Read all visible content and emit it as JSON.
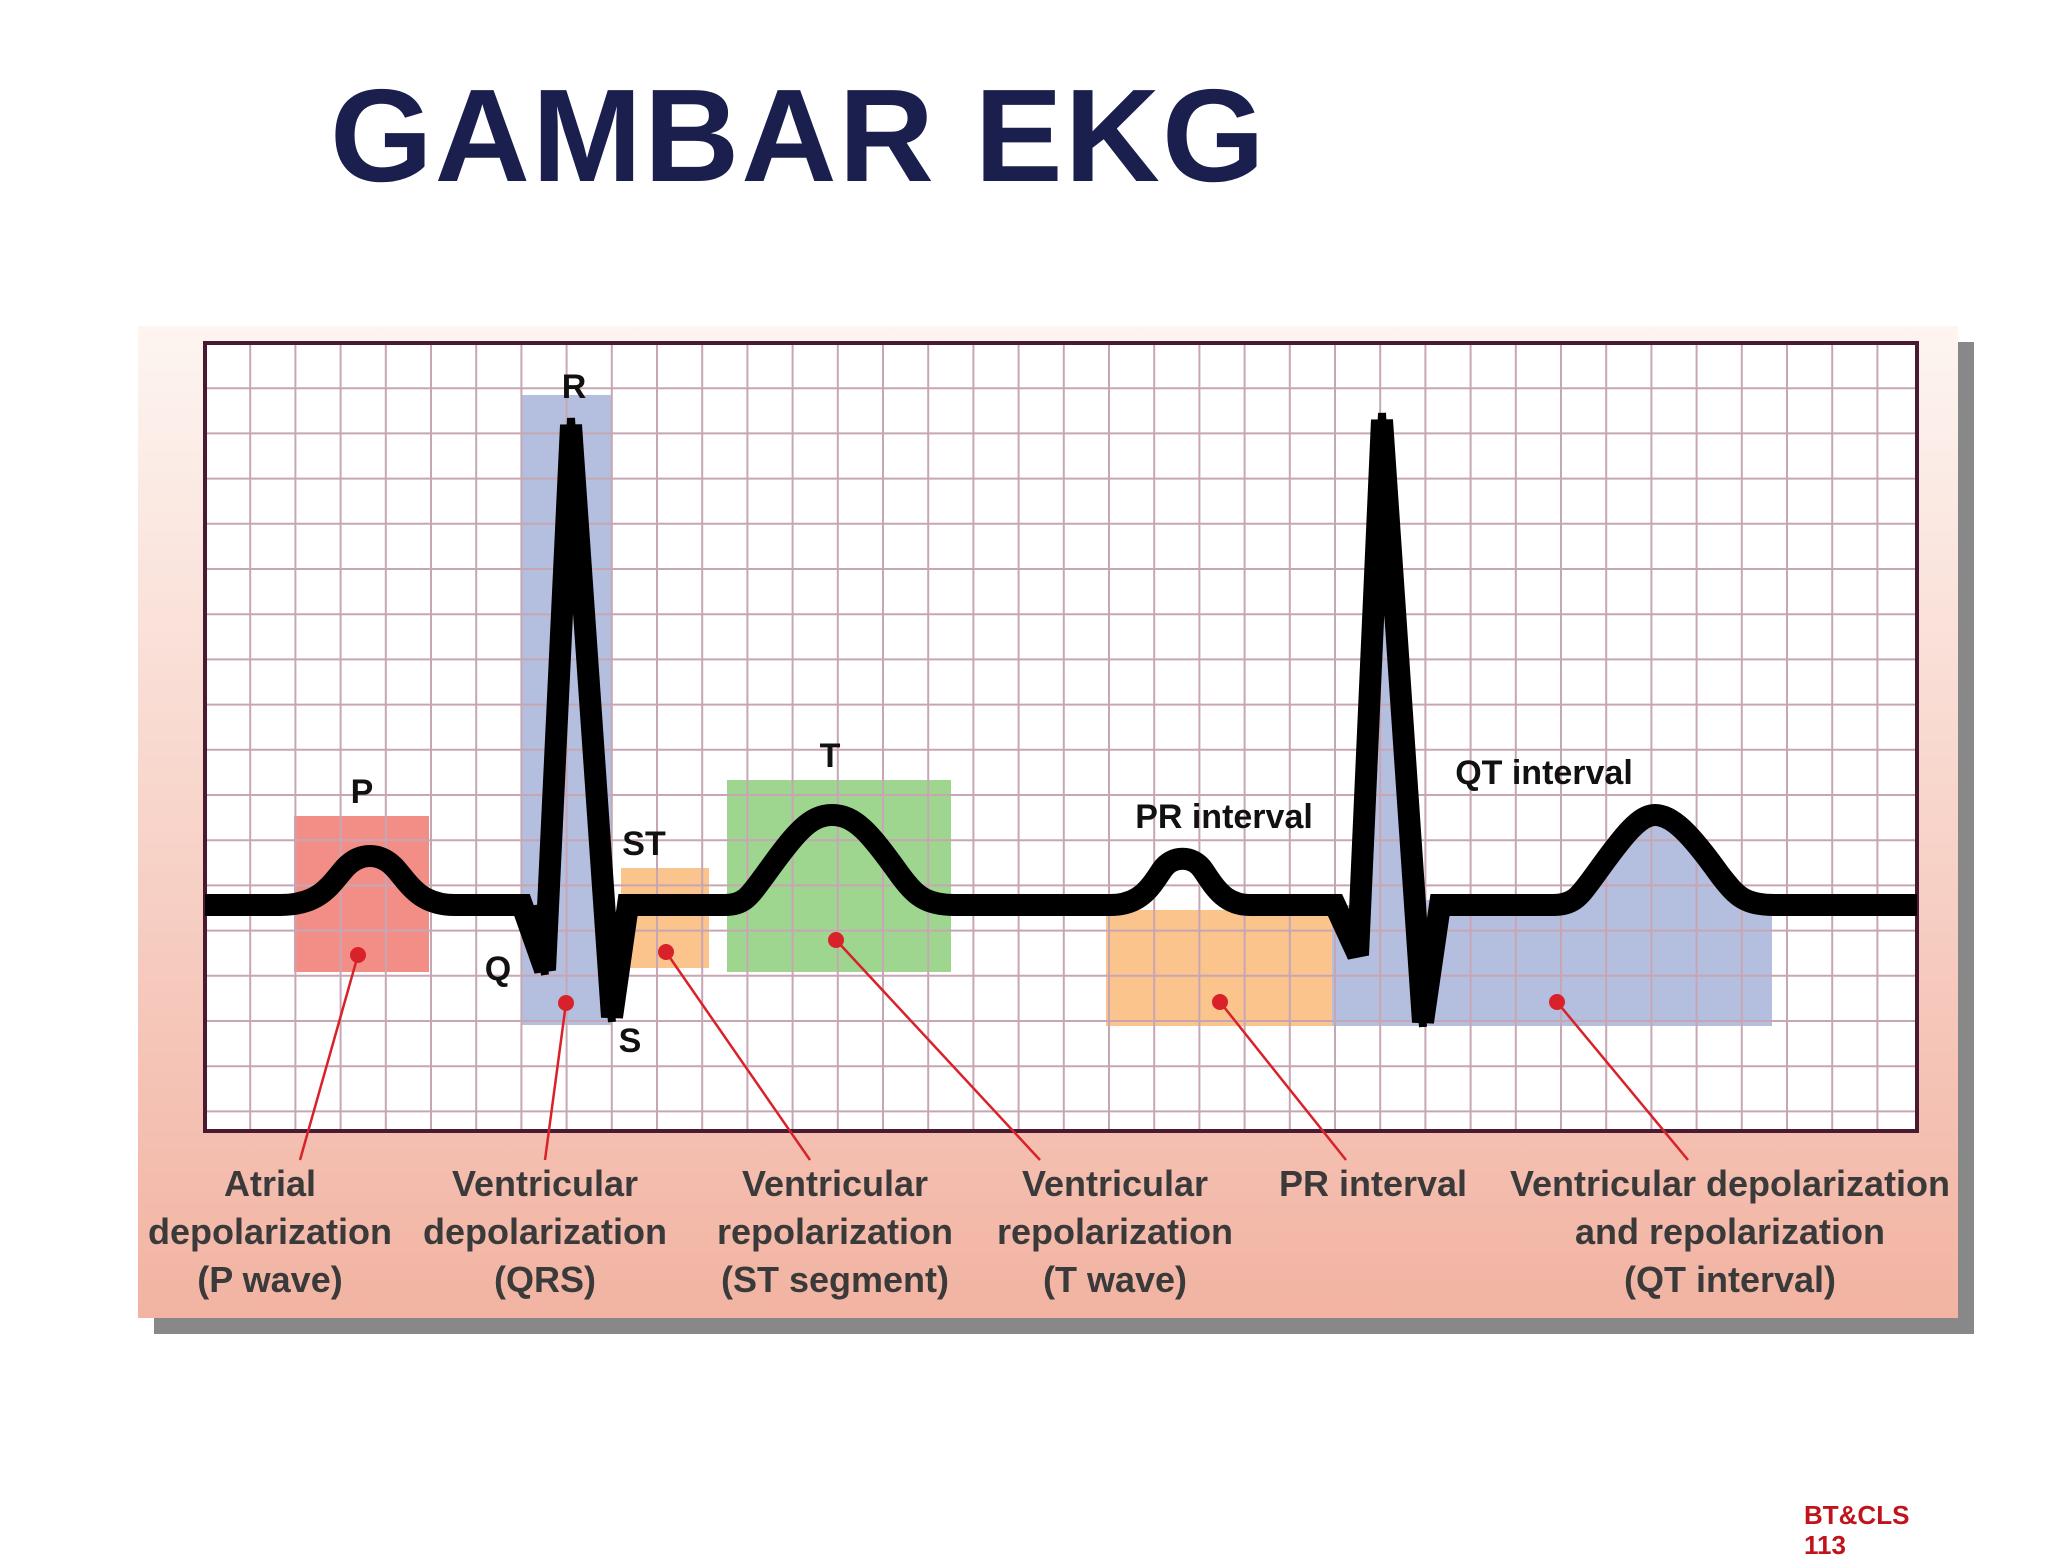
{
  "title": "GAMBAR EKG",
  "colors": {
    "title": "#1b1f4e",
    "grid_line": "#c7a6b4",
    "grid_bg": "#ffffff",
    "frame": "#4a1a33",
    "panel_top": "#fdf5f1",
    "panel_bottom": "#f2b3a2",
    "qrs_box": "#b4bfdf",
    "p_box": "#f38e86",
    "st_box": "#fbc48c",
    "t_box": "#9fd68f",
    "pr_box": "#fbc48c",
    "qt_box": "#b4bfdf",
    "trace": "#000000",
    "pointer": "#d9212a",
    "footer": "#c0141c"
  },
  "wave_labels": {
    "p": "P",
    "r": "R",
    "q": "Q",
    "s": "S",
    "st": "ST",
    "t": "T",
    "pr_interval": "PR interval",
    "qt_interval": "QT interval"
  },
  "captions": [
    {
      "id": "atrial",
      "lines": [
        "Atrial",
        "depolarization",
        "(P wave)"
      ]
    },
    {
      "id": "qrs",
      "lines": [
        "Ventricular",
        "depolarization",
        "(QRS)"
      ]
    },
    {
      "id": "st",
      "lines": [
        "Ventricular",
        "repolarization",
        "(ST segment)"
      ]
    },
    {
      "id": "t",
      "lines": [
        "Ventricular",
        "repolarization",
        "(T wave)"
      ]
    },
    {
      "id": "pr",
      "lines": [
        "PR interval"
      ]
    },
    {
      "id": "qt",
      "lines": [
        "Ventricular depolarization",
        "and repolarization",
        "(QT interval)"
      ]
    }
  ],
  "footer": [
    "BT&CLS",
    "113"
  ]
}
